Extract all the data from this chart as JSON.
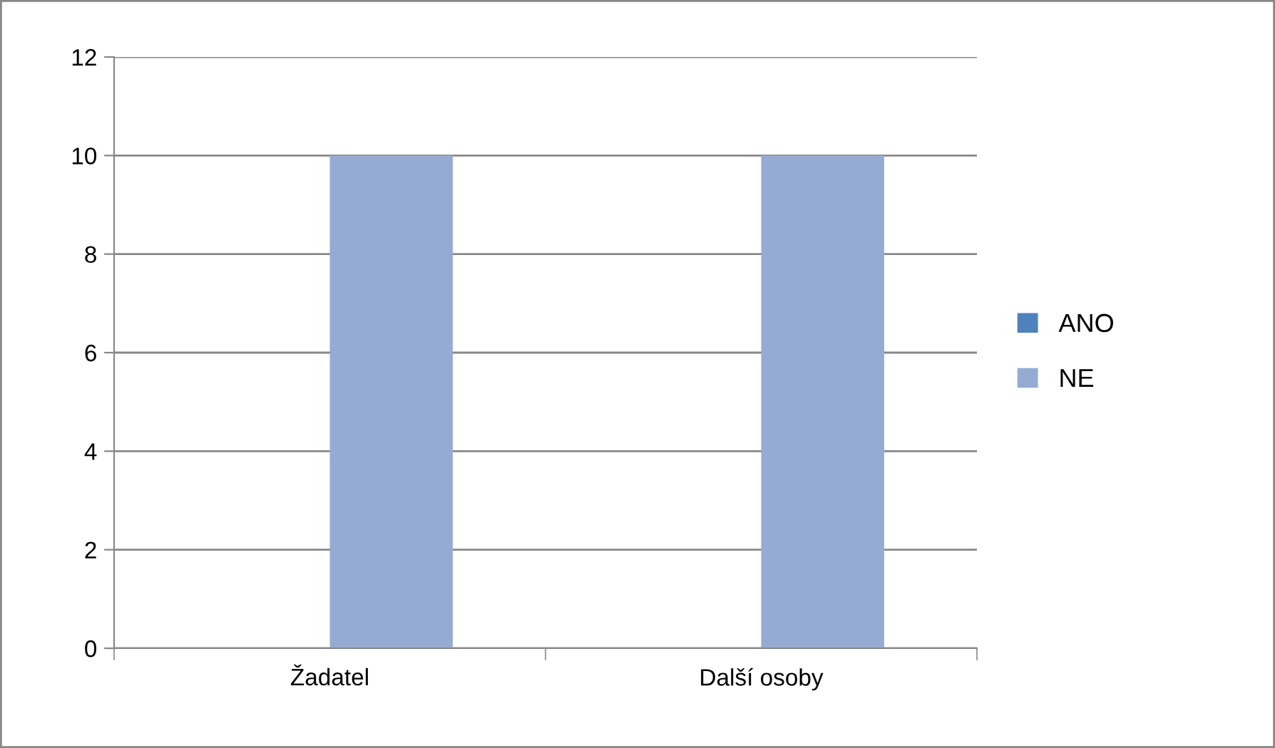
{
  "chart_data": {
    "type": "bar",
    "categories": [
      "Žadatel",
      "Další osoby"
    ],
    "series": [
      {
        "name": "ANO",
        "color": "#4f81bd",
        "values": [
          0,
          0
        ]
      },
      {
        "name": "NE",
        "color": "#95abd3",
        "values": [
          10,
          10
        ]
      }
    ],
    "ylim": [
      0,
      12
    ],
    "yticks": [
      0,
      2,
      4,
      6,
      8,
      10,
      12
    ],
    "grid": "y",
    "legend": "right"
  }
}
